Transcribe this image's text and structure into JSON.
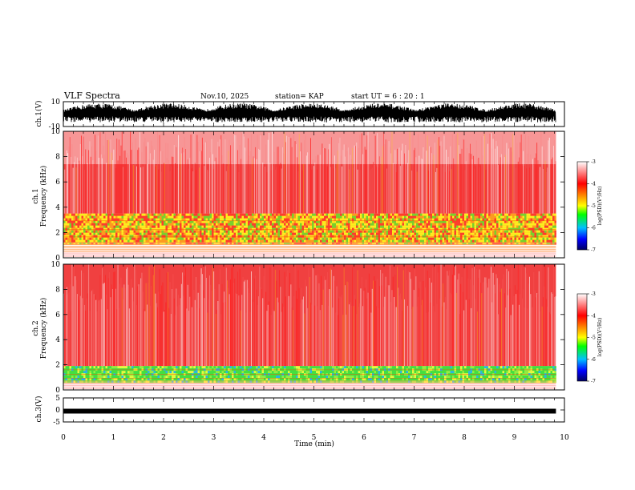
{
  "header": {
    "title": "VLF Spectra",
    "date": "Nov.10, 2025",
    "station": "station= KAP",
    "start": "start  UT =   6 : 20 : 1"
  },
  "chart_data": [
    {
      "type": "line",
      "name": "ch1-waveform",
      "ylabel": "ch.1(V)",
      "ylim": [
        -10,
        10
      ],
      "yticks": [
        "10",
        "-10"
      ],
      "xlim": [
        0,
        10
      ],
      "data_end_min": 9.83,
      "color": "#000000"
    },
    {
      "type": "heatmap",
      "name": "ch1-spectrogram",
      "ylabel_top": "ch.1",
      "ylabel": "Frequency  (kHz)",
      "ylim": [
        0,
        10
      ],
      "yticks": [
        "0",
        "2",
        "4",
        "6",
        "8",
        "10"
      ],
      "xlim": [
        0,
        10
      ],
      "bands": [
        {
          "from": 0.0,
          "to": 0.5,
          "level": "white-stripes"
        },
        {
          "from": 1.2,
          "to": 3.5,
          "level": "yellow-green"
        },
        {
          "from": 3.5,
          "to": 10.0,
          "level": "red"
        }
      ],
      "colorbar": {
        "label": "log(PSD)(V²/Hz)",
        "ticks": [
          "-3",
          "-4",
          "-5",
          "-6",
          "-7"
        ],
        "range": [
          -7,
          -3
        ]
      }
    },
    {
      "type": "heatmap",
      "name": "ch2-spectrogram",
      "ylabel_top": "ch.2",
      "ylabel": "Frequency  (kHz)",
      "ylim": [
        0,
        10
      ],
      "yticks": [
        "0",
        "2",
        "4",
        "6",
        "8",
        "10"
      ],
      "xlim": [
        0,
        10
      ],
      "bands": [
        {
          "from": 0.0,
          "to": 0.5,
          "level": "white-stripes"
        },
        {
          "from": 0.7,
          "to": 1.9,
          "level": "green"
        },
        {
          "from": 1.9,
          "to": 10.0,
          "level": "red"
        }
      ],
      "colorbar": {
        "label": "log(PSD)(V²/Hz)",
        "ticks": [
          "-3",
          "-4",
          "-5",
          "-6",
          "-7"
        ],
        "range": [
          -7,
          -3
        ]
      }
    },
    {
      "type": "line",
      "name": "ch3-waveform",
      "ylabel": "ch.3(V)",
      "ylim": [
        -5,
        5
      ],
      "yticks": [
        "5",
        "0",
        "-5"
      ],
      "xlim": [
        0,
        10
      ],
      "level": -0.5,
      "data_end_min": 9.83,
      "color": "#000000"
    }
  ],
  "xaxis": {
    "label": "Time  (min)",
    "ticks": [
      "0",
      "1",
      "2",
      "3",
      "4",
      "5",
      "6",
      "7",
      "8",
      "9",
      "10"
    ]
  }
}
